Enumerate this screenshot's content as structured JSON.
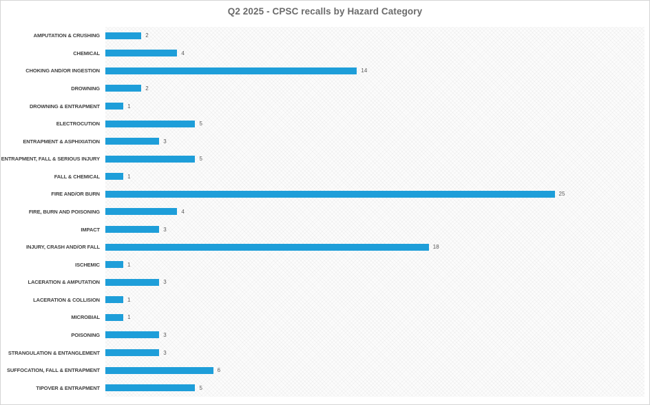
{
  "chart_data": {
    "type": "bar",
    "orientation": "horizontal",
    "title": "Q2 2025 - CPSC recalls by Hazard Category",
    "categories": [
      "AMPUTATION & CRUSHING",
      "CHEMICAL",
      "CHOKING AND/OR INGESTION",
      "DROWNING",
      "DROWNING & ENTRAPMENT",
      "ELECTROCUTION",
      "ENTRAPMENT & ASPHIXIATION",
      "ENTRAPMENT, FALL & SERIOUS INJURY",
      "FALL & CHEMICAL",
      "FIRE AND/OR BURN",
      "FIRE, BURN AND POISONING",
      "IMPACT",
      "INJURY, CRASH AND/OR FALL",
      "ISCHEMIC",
      "LACERATION & AMPUTATION",
      "LACERATION & COLLISION",
      "MICROBIAL",
      "POISONING",
      "STRANGULATION & ENTANGLEMENT",
      "SUFFOCATION, FALL & ENTRAPMENT",
      "TIPOVER & ENTRAPMENT"
    ],
    "values": [
      2,
      4,
      14,
      2,
      1,
      5,
      3,
      5,
      1,
      25,
      4,
      3,
      18,
      1,
      3,
      1,
      1,
      3,
      3,
      6,
      5
    ],
    "xlabel": "",
    "ylabel": "",
    "xlim": [
      0,
      30
    ],
    "grid": false,
    "legend": false,
    "data_labels": true,
    "bar_color": "#1E9ED9",
    "title_color": "#6A6A6A",
    "label_color": "#3D3D3D",
    "value_label_color": "#595959",
    "plot_background": "light diagonal crosshatch pattern"
  }
}
